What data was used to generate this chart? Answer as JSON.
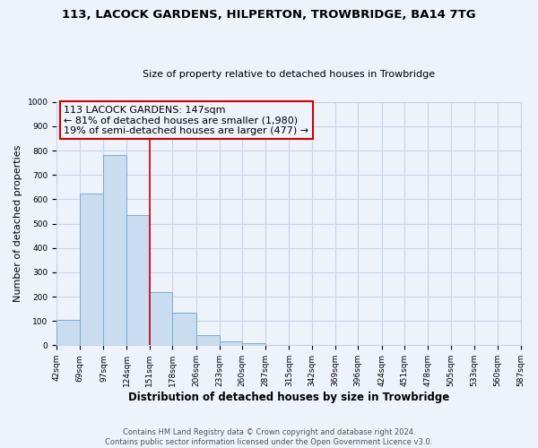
{
  "title": "113, LACOCK GARDENS, HILPERTON, TROWBRIDGE, BA14 7TG",
  "subtitle": "Size of property relative to detached houses in Trowbridge",
  "xlabel": "Distribution of detached houses by size in Trowbridge",
  "ylabel": "Number of detached properties",
  "footer_line1": "Contains HM Land Registry data © Crown copyright and database right 2024.",
  "footer_line2": "Contains public sector information licensed under the Open Government Licence v3.0.",
  "annotation_line1": "113 LACOCK GARDENS: 147sqm",
  "annotation_line2": "← 81% of detached houses are smaller (1,980)",
  "annotation_line3": "19% of semi-detached houses are larger (477) →",
  "bar_edges": [
    42,
    69,
    97,
    124,
    151,
    178,
    206,
    233,
    260,
    287,
    315,
    342,
    369,
    396,
    424,
    451,
    478,
    505,
    533,
    560,
    587
  ],
  "bar_heights": [
    103,
    622,
    782,
    536,
    220,
    133,
    43,
    17,
    10,
    0,
    0,
    0,
    0,
    0,
    0,
    0,
    0,
    0,
    0,
    0
  ],
  "bar_color": "#c9dcf0",
  "bar_edge_color": "#7aadd4",
  "property_line_x": 151,
  "property_line_color": "#cc0000",
  "ylim": [
    0,
    1000
  ],
  "yticks": [
    0,
    100,
    200,
    300,
    400,
    500,
    600,
    700,
    800,
    900,
    1000
  ],
  "annotation_box_color": "#cc0000",
  "bg_color": "#eef2fb",
  "grid_color": "#c8d4e8",
  "title_fontsize": 9.5,
  "subtitle_fontsize": 8.0,
  "ylabel_fontsize": 8.0,
  "xlabel_fontsize": 8.5,
  "tick_fontsize": 6.5,
  "footer_fontsize": 6.0,
  "ann_fontsize": 8.0
}
